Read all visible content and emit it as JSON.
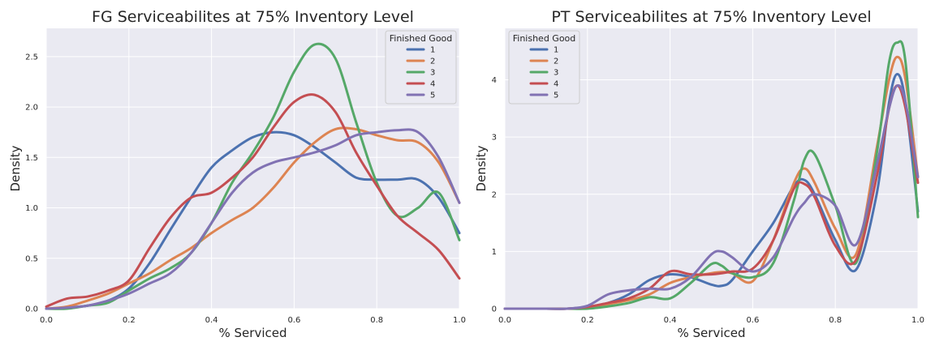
{
  "chart_data": [
    {
      "type": "line",
      "title": "FG Serviceabilites at 75% Inventory Level",
      "xlabel": "% Serviced",
      "ylabel": "Density",
      "xlim": [
        0.0,
        1.0
      ],
      "ylim": [
        0.0,
        2.78
      ],
      "xticks": [
        0.0,
        0.2,
        0.4,
        0.6,
        0.8,
        1.0
      ],
      "xtick_labels": [
        "0.0",
        "0.2",
        "0.4",
        "0.6",
        "0.8",
        "1.0"
      ],
      "yticks": [
        0.0,
        0.5,
        1.0,
        1.5,
        2.0,
        2.5
      ],
      "ytick_labels": [
        "0.0",
        "0.5",
        "1.0",
        "1.5",
        "2.0",
        "2.5"
      ],
      "grid": true,
      "legend": {
        "title": "Finished Good",
        "placement": "top-right"
      },
      "x": [
        0.0,
        0.05,
        0.1,
        0.15,
        0.2,
        0.25,
        0.3,
        0.35,
        0.4,
        0.45,
        0.5,
        0.55,
        0.6,
        0.65,
        0.7,
        0.75,
        0.8,
        0.85,
        0.9,
        0.95,
        1.0
      ],
      "series": [
        {
          "name": "1",
          "color": "#4c72b0",
          "values": [
            0.0,
            0.01,
            0.03,
            0.08,
            0.2,
            0.45,
            0.78,
            1.1,
            1.4,
            1.57,
            1.7,
            1.75,
            1.72,
            1.6,
            1.45,
            1.3,
            1.28,
            1.28,
            1.28,
            1.1,
            0.75
          ]
        },
        {
          "name": "2",
          "color": "#dd8452",
          "values": [
            0.0,
            0.02,
            0.08,
            0.15,
            0.25,
            0.35,
            0.48,
            0.6,
            0.75,
            0.88,
            1.0,
            1.2,
            1.45,
            1.65,
            1.78,
            1.78,
            1.72,
            1.67,
            1.65,
            1.45,
            1.05
          ]
        },
        {
          "name": "3",
          "color": "#55a868",
          "values": [
            0.0,
            0.0,
            0.03,
            0.06,
            0.18,
            0.3,
            0.4,
            0.55,
            0.85,
            1.25,
            1.55,
            1.9,
            2.35,
            2.62,
            2.48,
            1.85,
            1.25,
            0.92,
            1.0,
            1.15,
            0.68
          ]
        },
        {
          "name": "4",
          "color": "#c44e52",
          "values": [
            0.02,
            0.1,
            0.12,
            0.18,
            0.28,
            0.6,
            0.9,
            1.1,
            1.15,
            1.3,
            1.5,
            1.8,
            2.05,
            2.12,
            1.95,
            1.55,
            1.22,
            0.92,
            0.75,
            0.58,
            0.3
          ]
        },
        {
          "name": "5",
          "color": "#8172b3",
          "values": [
            0.0,
            0.01,
            0.03,
            0.08,
            0.15,
            0.25,
            0.35,
            0.55,
            0.85,
            1.15,
            1.35,
            1.45,
            1.5,
            1.55,
            1.62,
            1.72,
            1.75,
            1.77,
            1.75,
            1.5,
            1.05
          ]
        }
      ]
    },
    {
      "type": "line",
      "title": "PT Serviceabilites at 75% Inventory Level",
      "xlabel": "% Serviced",
      "ylabel": "Density",
      "xlim": [
        0.0,
        1.0
      ],
      "ylim": [
        0.0,
        4.9
      ],
      "xticks": [
        0.0,
        0.2,
        0.4,
        0.6,
        0.8,
        1.0
      ],
      "xtick_labels": [
        "0.0",
        "0.2",
        "0.4",
        "0.6",
        "0.8",
        "1.0"
      ],
      "yticks": [
        0,
        1,
        2,
        3,
        4
      ],
      "ytick_labels": [
        "0",
        "1",
        "2",
        "3",
        "4"
      ],
      "grid": true,
      "legend": {
        "title": "Finished Good",
        "placement": "top-left"
      },
      "x": [
        0.0,
        0.1,
        0.15,
        0.2,
        0.25,
        0.3,
        0.35,
        0.4,
        0.45,
        0.5,
        0.525,
        0.55,
        0.6,
        0.65,
        0.7,
        0.725,
        0.75,
        0.8,
        0.85,
        0.9,
        0.93,
        0.95,
        0.97,
        1.0
      ],
      "series": [
        {
          "name": "1",
          "color": "#4c72b0",
          "values": [
            0.0,
            0.0,
            0.0,
            0.03,
            0.1,
            0.25,
            0.5,
            0.6,
            0.55,
            0.42,
            0.4,
            0.5,
            1.0,
            1.5,
            2.15,
            2.25,
            2.0,
            1.2,
            0.68,
            2.0,
            3.6,
            4.1,
            3.6,
            1.7
          ]
        },
        {
          "name": "2",
          "color": "#dd8452",
          "values": [
            0.0,
            0.0,
            0.0,
            0.02,
            0.08,
            0.15,
            0.25,
            0.45,
            0.55,
            0.62,
            0.64,
            0.62,
            0.48,
            1.2,
            2.2,
            2.45,
            2.2,
            1.4,
            0.95,
            2.8,
            4.0,
            4.4,
            4.0,
            2.3
          ]
        },
        {
          "name": "3",
          "color": "#55a868",
          "values": [
            0.0,
            0.0,
            0.0,
            0.0,
            0.04,
            0.1,
            0.2,
            0.18,
            0.45,
            0.78,
            0.75,
            0.62,
            0.55,
            0.8,
            1.9,
            2.6,
            2.7,
            1.8,
            0.8,
            2.7,
            4.3,
            4.65,
            4.3,
            1.6
          ]
        },
        {
          "name": "4",
          "color": "#c44e52",
          "values": [
            0.0,
            0.0,
            0.0,
            0.03,
            0.1,
            0.18,
            0.35,
            0.65,
            0.6,
            0.6,
            0.62,
            0.65,
            0.7,
            1.2,
            2.1,
            2.18,
            1.95,
            1.1,
            0.85,
            2.3,
            3.5,
            3.9,
            3.5,
            2.2
          ]
        },
        {
          "name": "5",
          "color": "#8172b3",
          "values": [
            0.0,
            0.0,
            0.0,
            0.05,
            0.25,
            0.32,
            0.35,
            0.35,
            0.55,
            0.95,
            1.0,
            0.9,
            0.65,
            0.9,
            1.6,
            1.85,
            2.0,
            1.8,
            1.12,
            2.5,
            3.5,
            3.9,
            3.6,
            2.3
          ]
        }
      ]
    }
  ]
}
